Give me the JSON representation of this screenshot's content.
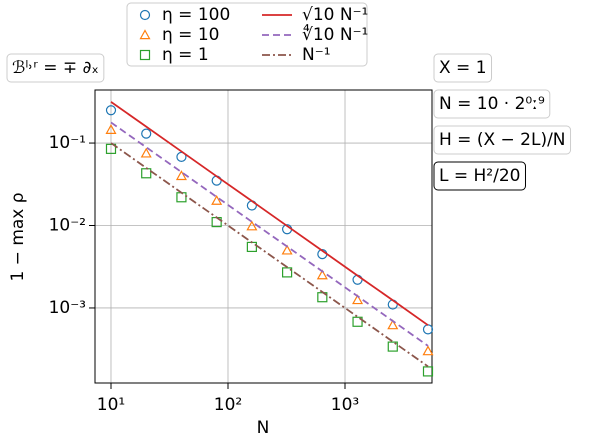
{
  "chart_data": {
    "type": "scatter",
    "xlabel": "N",
    "ylabel": "1 − max ρ",
    "xscale": "log",
    "yscale": "log",
    "grid": true,
    "xlim": [
      7.3,
      5540
    ],
    "ylim": [
      0.000123,
      0.44
    ],
    "xticks": [
      {
        "value": 10,
        "label": "10¹"
      },
      {
        "value": 100,
        "label": "10²"
      },
      {
        "value": 1000,
        "label": "10³"
      }
    ],
    "yticks": [
      {
        "value": 0.001,
        "label": "10⁻³"
      },
      {
        "value": 0.01,
        "label": "10⁻²"
      },
      {
        "value": 0.1,
        "label": "10⁻¹"
      }
    ],
    "x": [
      10,
      20,
      40,
      80,
      160,
      320,
      640,
      1280,
      2560,
      5120
    ],
    "series": [
      {
        "name": "η = 100",
        "color": "#1f77b4",
        "marker": "circle",
        "values": [
          0.25,
          0.13,
          0.068,
          0.035,
          0.0175,
          0.009,
          0.0045,
          0.0022,
          0.0011,
          0.00055
        ]
      },
      {
        "name": "η = 10",
        "color": "#ff7f0e",
        "marker": "triangle",
        "values": [
          0.145,
          0.075,
          0.04,
          0.02,
          0.0098,
          0.005,
          0.0025,
          0.00125,
          0.00062,
          0.0003
        ]
      },
      {
        "name": "η = 1",
        "color": "#2ca02c",
        "marker": "square",
        "values": [
          0.085,
          0.043,
          0.022,
          0.011,
          0.0055,
          0.0027,
          0.00135,
          0.00068,
          0.00034,
          0.00017
        ]
      },
      {
        "name": "√10 N⁻¹",
        "color": "#d62728",
        "line": "solid",
        "values": [
          0.3162,
          0.1581,
          0.0791,
          0.0395,
          0.0198,
          0.00988,
          0.00494,
          0.00247,
          0.00124,
          0.000618
        ]
      },
      {
        "name": "∜10 N⁻¹",
        "color": "#9467bd",
        "line": "dashed",
        "values": [
          0.1778,
          0.0889,
          0.0445,
          0.0222,
          0.0111,
          0.00556,
          0.00278,
          0.00139,
          0.000695,
          0.000347
        ]
      },
      {
        "name": "N⁻¹",
        "color": "#8c564b",
        "line": "dashdot",
        "values": [
          0.1,
          0.05,
          0.025,
          0.0125,
          0.00625,
          0.003125,
          0.0015625,
          0.00078125,
          0.000390625,
          0.0001953125
        ]
      }
    ],
    "annotations": [
      "ℬˡ˒ʳ = ∓ ∂ₓ",
      "X = 1",
      "N = 10 · 2⁰ː⁹",
      "H = (X − 2L)/N",
      "L = H²/20"
    ]
  }
}
